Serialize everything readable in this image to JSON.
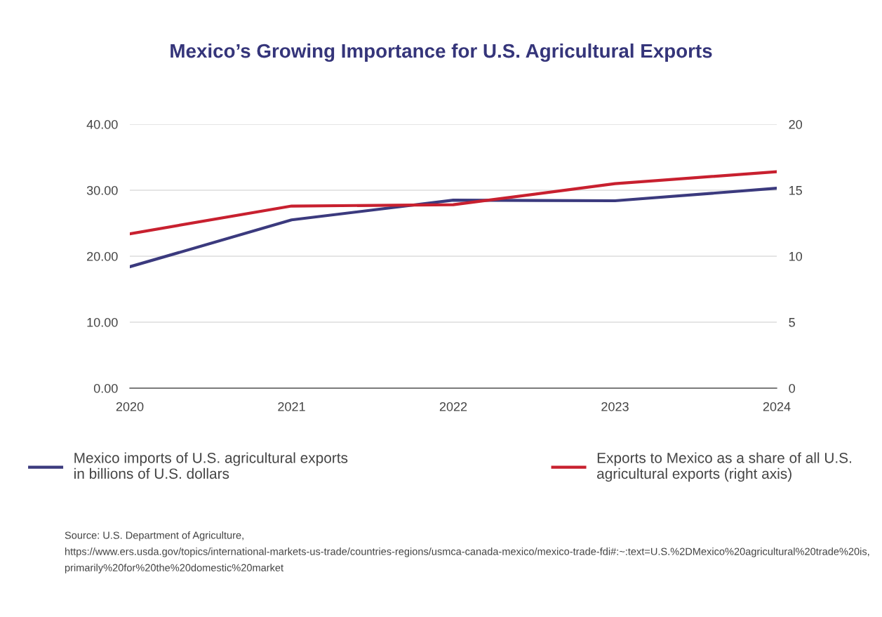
{
  "chart_data": {
    "type": "line",
    "title": "Mexico’s Growing Importance for U.S. Agricultural Exports",
    "categories": [
      "2020",
      "2021",
      "2022",
      "2023",
      "2024"
    ],
    "series": [
      {
        "name": "Mexico imports of U.S. agricultural exports\nin billions of U.S. dollars",
        "color": "#3b3a7e",
        "values": [
          18.4,
          25.5,
          28.5,
          28.4,
          30.3
        ]
      },
      {
        "name": "Exports to Mexico as a share of all U.S.\nagricultural exports (right axis)",
        "color": "#c8202f",
        "values": [
          11.7,
          13.8,
          13.9,
          15.5,
          16.4
        ],
        "axis": "y2"
      }
    ],
    "ylim": [
      0,
      40
    ],
    "yticks": [
      {
        "value": 0,
        "label": "0.00"
      },
      {
        "value": 10,
        "label": "10.00"
      },
      {
        "value": 20,
        "label": "20.00"
      },
      {
        "value": 30,
        "label": "30.00"
      },
      {
        "value": 40,
        "label": "40.00"
      }
    ],
    "y2lim": [
      0,
      20
    ],
    "y2ticks": [
      0,
      5,
      10,
      15,
      20
    ],
    "grid": "y",
    "legend": "bottom",
    "marker": "none",
    "line_style": "solid",
    "annotations": [
      "Source: U.S. Department of Agriculture, https://www.ers.usda.gov/topics/international-markets-us-trade/countries-regions/usmca-canada-mexico/mexico-trade-fdi#:~:text=U.S.%2DMexico%20agricultural%20trade%20is, primarily%20for%20the%20domestic%20market"
    ]
  }
}
